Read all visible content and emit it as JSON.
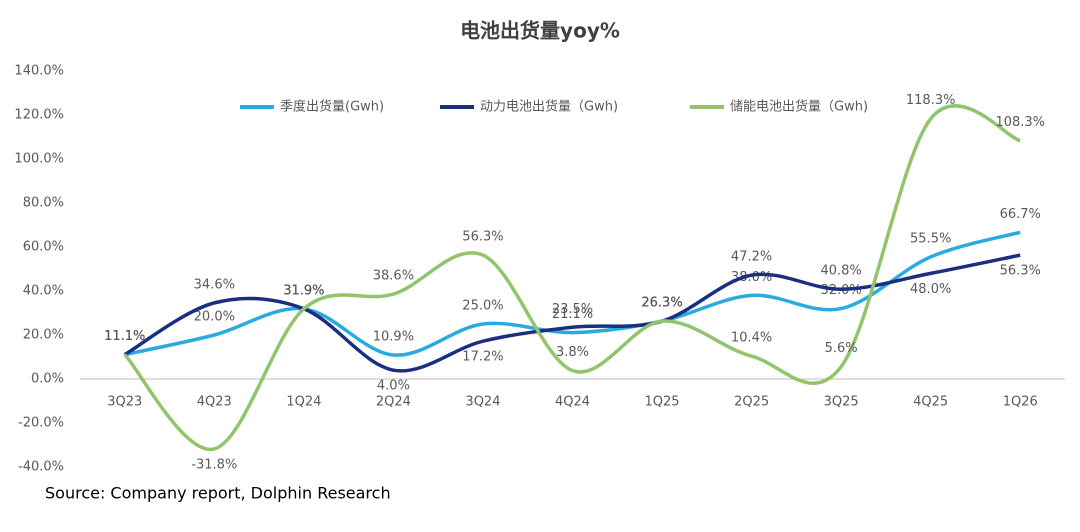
{
  "chart_data": {
    "type": "line",
    "title": "电池出货量yoy%",
    "source": "Source: Company report, Dolphin Research",
    "categories": [
      "3Q23",
      "4Q23",
      "1Q24",
      "2Q24",
      "3Q24",
      "4Q24",
      "1Q25",
      "2Q25",
      "3Q25",
      "4Q25",
      "1Q26"
    ],
    "series": [
      {
        "name": "季度出货量(Gwh)",
        "color": "#29abe2",
        "values": [
          11.1,
          20.0,
          31.9,
          10.9,
          25.0,
          21.1,
          26.3,
          38.0,
          32.0,
          55.5,
          66.7
        ],
        "value_labels": [
          "11.1%",
          "20.0%",
          "31.9%",
          "10.9%",
          "25.0%",
          "21.1%",
          "26.3%",
          "38.0%",
          "32.0%",
          "55.5%",
          "66.7%"
        ]
      },
      {
        "name": "动力电池出货量（Gwh)",
        "color": "#1a2f80",
        "values": [
          11.1,
          34.6,
          31.9,
          4.0,
          17.2,
          23.5,
          26.3,
          47.2,
          40.8,
          48.0,
          56.3
        ],
        "value_labels": [
          "11.1%",
          "34.6%",
          "31.9%",
          "4.0%",
          "17.2%",
          "23.5%",
          "26.3%",
          "47.2%",
          "40.8%",
          "48.0%",
          "56.3%"
        ]
      },
      {
        "name": "储能电池出货量（Gwh)",
        "color": "#92c46c",
        "values": [
          11.1,
          -31.8,
          31.9,
          38.6,
          56.3,
          3.8,
          26.3,
          10.4,
          5.6,
          118.3,
          108.3
        ],
        "value_labels": [
          "11.1%",
          "-31.8%",
          "31.9%",
          "38.6%",
          "56.3%",
          "3.8%",
          "26.3%",
          "10.4%",
          "5.6%",
          "118.3%",
          "108.3%"
        ]
      }
    ],
    "ylim": [
      -40,
      140
    ],
    "yticks": [
      {
        "value": -40,
        "label": "-40.0%"
      },
      {
        "value": -20,
        "label": "-20.0%"
      },
      {
        "value": 0,
        "label": "0.0%"
      },
      {
        "value": 20,
        "label": "20.0%"
      },
      {
        "value": 40,
        "label": "40.0%"
      },
      {
        "value": 60,
        "label": "60.0%"
      },
      {
        "value": 80,
        "label": "80.0%"
      },
      {
        "value": 100,
        "label": "100.0%"
      },
      {
        "value": 120,
        "label": "120.0%"
      },
      {
        "value": 140,
        "label": "140.0%"
      }
    ],
    "grid": false,
    "legend": "top",
    "smooth": true
  }
}
